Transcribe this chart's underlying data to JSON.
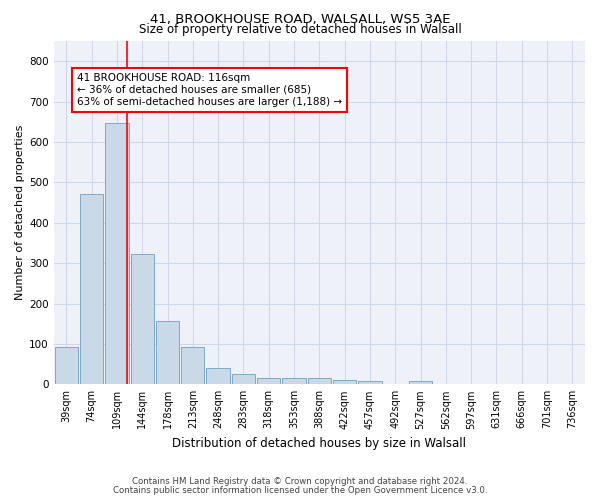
{
  "title_line1": "41, BROOKHOUSE ROAD, WALSALL, WS5 3AE",
  "title_line2": "Size of property relative to detached houses in Walsall",
  "xlabel": "Distribution of detached houses by size in Walsall",
  "ylabel": "Number of detached properties",
  "bar_labels": [
    "39sqm",
    "74sqm",
    "109sqm",
    "144sqm",
    "178sqm",
    "213sqm",
    "248sqm",
    "283sqm",
    "318sqm",
    "353sqm",
    "388sqm",
    "422sqm",
    "457sqm",
    "492sqm",
    "527sqm",
    "562sqm",
    "597sqm",
    "631sqm",
    "666sqm",
    "701sqm",
    "736sqm"
  ],
  "bar_values": [
    93,
    470,
    648,
    323,
    157,
    93,
    40,
    25,
    15,
    15,
    15,
    10,
    7,
    0,
    8,
    0,
    0,
    0,
    0,
    0,
    0
  ],
  "bar_color": "#c9d9e8",
  "bar_edge_color": "#7aaac8",
  "grid_color": "#d0d8e8",
  "background_color": "#eef2f8",
  "red_line_x": 2.38,
  "annotation_text": "41 BROOKHOUSE ROAD: 116sqm\n← 36% of detached houses are smaller (685)\n63% of semi-detached houses are larger (1,188) →",
  "annotation_box_color": "white",
  "annotation_box_edge": "red",
  "ylim": [
    0,
    850
  ],
  "yticks": [
    0,
    100,
    200,
    300,
    400,
    500,
    600,
    700,
    800
  ],
  "footer_line1": "Contains HM Land Registry data © Crown copyright and database right 2024.",
  "footer_line2": "Contains public sector information licensed under the Open Government Licence v3.0."
}
